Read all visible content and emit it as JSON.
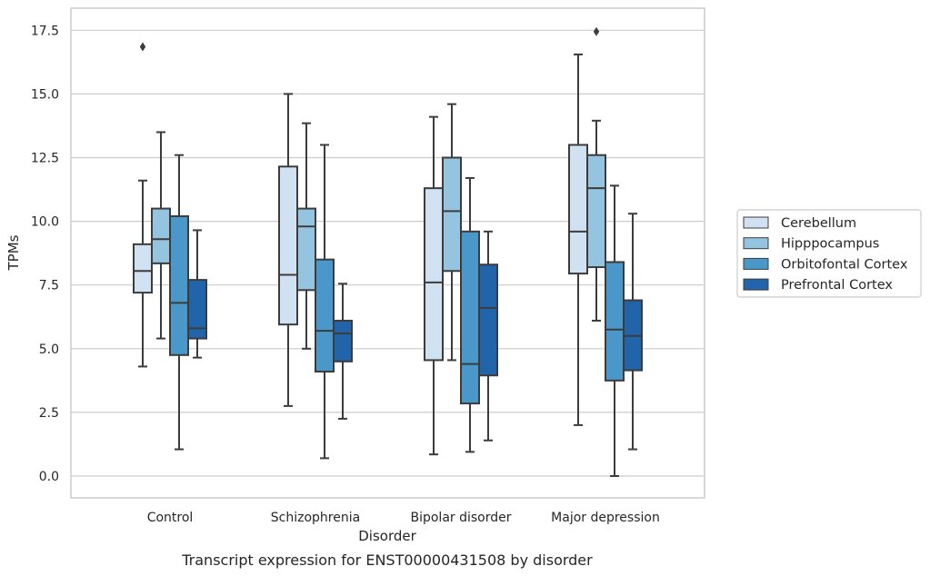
{
  "chart_data": {
    "type": "box",
    "title": "",
    "caption": "Transcript expression for ENST00000431508 by disorder",
    "xlabel": "Disorder",
    "ylabel": "TPMs",
    "ylim": [
      -0.8,
      18.3
    ],
    "yticks": [
      "0.0",
      "2.5",
      "5.0",
      "7.5",
      "10.0",
      "12.5",
      "15.0",
      "17.5"
    ],
    "ytick_values": [
      0,
      2.5,
      5,
      7.5,
      10,
      12.5,
      15,
      17.5
    ],
    "grid": true,
    "legend_position": "right",
    "categories": [
      "Control",
      "Schizophrenia",
      "Bipolar disorder",
      "Major depression"
    ],
    "series": [
      {
        "name": "Cerebellum",
        "color": "#d0e1f2",
        "boxes": [
          {
            "whislo": 4.3,
            "q1": 7.2,
            "med": 8.05,
            "q3": 9.1,
            "whishi": 11.6,
            "fliers": [
              16.85
            ]
          },
          {
            "whislo": 2.75,
            "q1": 5.95,
            "med": 7.9,
            "q3": 12.15,
            "whishi": 15.0,
            "fliers": []
          },
          {
            "whislo": 0.85,
            "q1": 4.55,
            "med": 7.6,
            "q3": 11.3,
            "whishi": 14.1,
            "fliers": []
          },
          {
            "whislo": 2.0,
            "q1": 7.95,
            "med": 9.6,
            "q3": 13.0,
            "whishi": 16.55,
            "fliers": []
          }
        ]
      },
      {
        "name": "Hipppocampus",
        "color": "#94c4df",
        "boxes": [
          {
            "whislo": 5.4,
            "q1": 8.35,
            "med": 9.3,
            "q3": 10.5,
            "whishi": 13.5,
            "fliers": []
          },
          {
            "whislo": 5.0,
            "q1": 7.3,
            "med": 9.8,
            "q3": 10.5,
            "whishi": 13.85,
            "fliers": []
          },
          {
            "whislo": 4.55,
            "q1": 8.05,
            "med": 10.4,
            "q3": 12.5,
            "whishi": 14.6,
            "fliers": []
          },
          {
            "whislo": 6.1,
            "q1": 8.2,
            "med": 11.3,
            "q3": 12.6,
            "whishi": 13.95,
            "fliers": [
              17.45
            ]
          }
        ]
      },
      {
        "name": "Orbitofontal Cortex",
        "color": "#4a98c9",
        "boxes": [
          {
            "whislo": 1.05,
            "q1": 4.75,
            "med": 6.8,
            "q3": 10.2,
            "whishi": 12.6,
            "fliers": []
          },
          {
            "whislo": 0.7,
            "q1": 4.1,
            "med": 5.7,
            "q3": 8.5,
            "whishi": 13.0,
            "fliers": []
          },
          {
            "whislo": 0.95,
            "q1": 2.85,
            "med": 4.4,
            "q3": 9.6,
            "whishi": 11.7,
            "fliers": []
          },
          {
            "whislo": 0.0,
            "q1": 3.75,
            "med": 5.75,
            "q3": 8.4,
            "whishi": 11.4,
            "fliers": []
          }
        ]
      },
      {
        "name": "Prefrontal Cortex",
        "color": "#2264aa",
        "boxes": [
          {
            "whislo": 4.65,
            "q1": 5.4,
            "med": 5.8,
            "q3": 7.7,
            "whishi": 9.65,
            "fliers": []
          },
          {
            "whislo": 2.25,
            "q1": 4.5,
            "med": 5.6,
            "q3": 6.1,
            "whishi": 7.55,
            "fliers": []
          },
          {
            "whislo": 1.4,
            "q1": 3.95,
            "med": 6.6,
            "q3": 8.3,
            "whishi": 9.6,
            "fliers": []
          },
          {
            "whislo": 1.05,
            "q1": 4.15,
            "med": 5.5,
            "q3": 6.9,
            "whishi": 10.3,
            "fliers": []
          }
        ]
      }
    ]
  }
}
